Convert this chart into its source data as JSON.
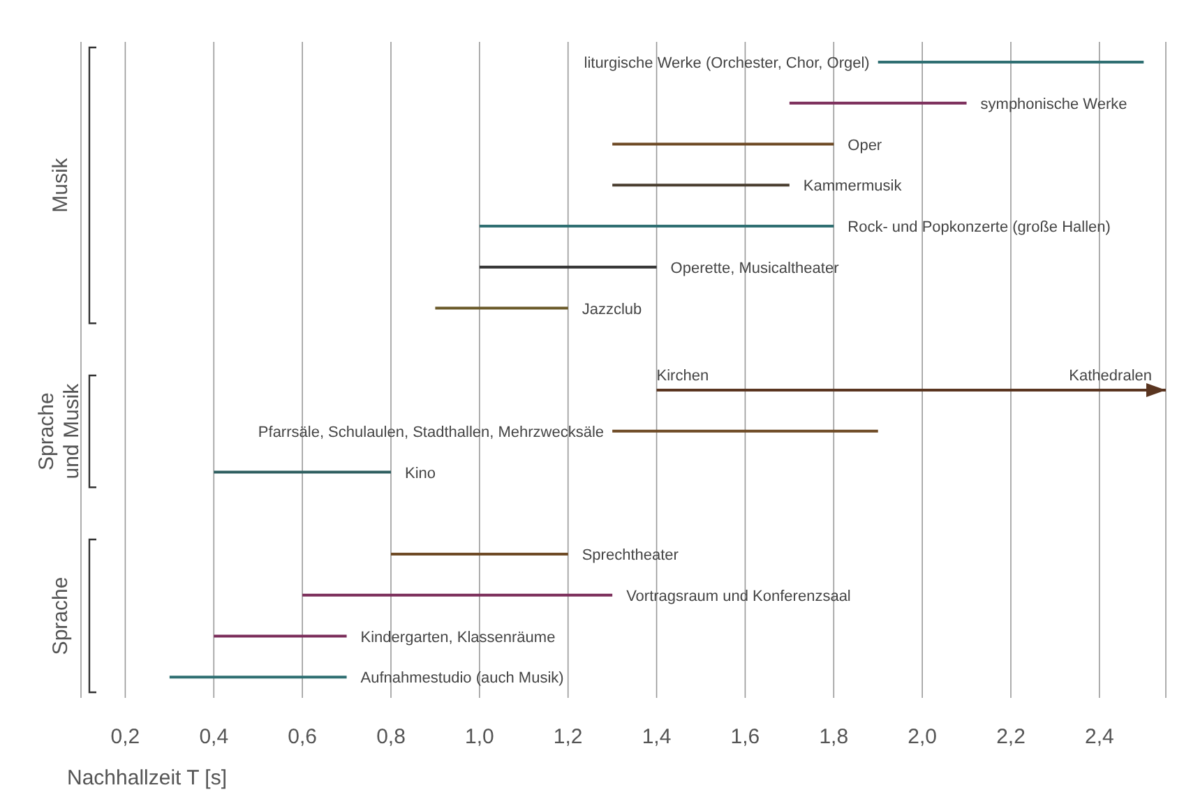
{
  "chart_data": {
    "type": "bar",
    "orientation": "horizontal",
    "xlabel": "Nachhallzeit T [s]",
    "categories": [
      "liturgische Werke (Orchester, Chor, Orgel)",
      "symphonische Werke",
      "Oper",
      "Kammermusik",
      "Rock- und Popkonzerte (große Hallen)",
      "Operette, Musicaltheater",
      "Jazzclub",
      null,
      "Kirchen",
      "Pfarrsäle, Schulaulen, Stadthallen, Mehrzwecksäle",
      "Kino",
      null,
      "Sprechtheater",
      "Vortragsraum und Konferenzsaal",
      "Kindergarten, Klassenräume",
      "Aufnahmestudio (auch Musik)"
    ],
    "base": [
      1.9,
      1.7,
      1.3,
      1.3,
      1.0,
      1.0,
      0.9,
      null,
      1.4,
      1.3,
      0.4,
      null,
      0.8,
      0.6,
      0.4,
      0.3
    ],
    "values": [
      0.6,
      0.4,
      0.5,
      0.4,
      0.8,
      0.4,
      0.3,
      null,
      1.15,
      0.6,
      0.4,
      null,
      0.4,
      0.7,
      0.3,
      0.4
    ],
    "colors": [
      "#2f6f72",
      "#7b2d5a",
      "#6e4a25",
      "#4a3e30",
      "#2f6f72",
      "#333333",
      "#6b5a2a",
      null,
      "#5a3520",
      "#6e4a25",
      "#2f5f60",
      null,
      "#6e4a25",
      "#7b2d5a",
      "#7b2d5a",
      "#2f6f72"
    ],
    "xlim": [
      0.1,
      2.55
    ],
    "xticks": [
      {
        "value": 0.2,
        "label": "0,2"
      },
      {
        "value": 0.4,
        "label": "0,4"
      },
      {
        "value": 0.6,
        "label": "0,6"
      },
      {
        "value": 0.8,
        "label": "0,8"
      },
      {
        "value": 1.0,
        "label": "1,0"
      },
      {
        "value": 1.2,
        "label": "1,2"
      },
      {
        "value": 1.4,
        "label": "1,4"
      },
      {
        "value": 1.6,
        "label": "1,6"
      },
      {
        "value": 1.8,
        "label": "1,8"
      },
      {
        "value": 2.0,
        "label": "2,0"
      },
      {
        "value": 2.2,
        "label": "2,2"
      },
      {
        "value": 2.4,
        "label": "2,4"
      }
    ],
    "tick_labels": "x",
    "grid": "x",
    "annotations": [
      "Musik",
      "Sprache und Musik",
      "Sprache",
      "Kathedralen"
    ]
  }
}
